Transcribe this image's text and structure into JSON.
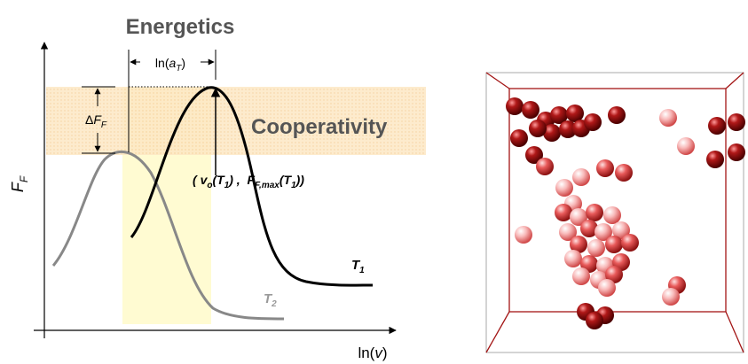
{
  "title": "Energetics",
  "shift_label": {
    "pre": "ln(",
    "var": "a",
    "sub": "T",
    "post": ")"
  },
  "height_label": {
    "delta": "Δ",
    "var": "F",
    "sub": "F"
  },
  "band_label": "Cooperativity",
  "peak_label": {
    "open": "( ",
    "v": "v",
    "v_sub": "o",
    "arg1": "(T",
    "arg1_sub": "1",
    "close1": ") ,  ",
    "f": "F",
    "f_sub": "F,max",
    "arg2": "(T",
    "arg2_sub": "1",
    "close2": "))"
  },
  "curves": [
    {
      "label": "T",
      "sub": "1"
    },
    {
      "label": "T",
      "sub": "2"
    }
  ],
  "y_axis": {
    "var": "F",
    "sub": "F"
  },
  "x_axis": {
    "pre": "ln(",
    "var": "v",
    "post": ")"
  }
}
